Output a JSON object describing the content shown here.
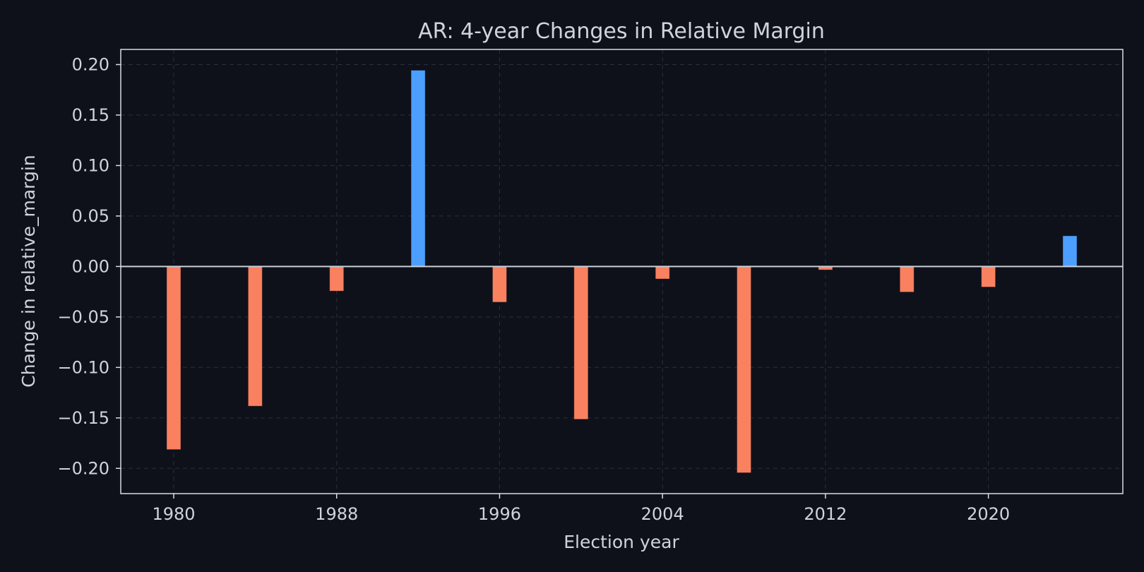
{
  "chart_data": {
    "type": "bar",
    "title": "AR: 4-year Changes in Relative Margin",
    "xlabel": "Election year",
    "ylabel": "Change in relative_margin",
    "x": [
      1980,
      1984,
      1988,
      1992,
      1996,
      2000,
      2004,
      2008,
      2012,
      2016,
      2020,
      2024
    ],
    "values": [
      -0.181,
      -0.138,
      -0.024,
      0.194,
      -0.035,
      -0.151,
      -0.012,
      -0.204,
      -0.003,
      -0.025,
      -0.02,
      0.03
    ],
    "xlim": [
      1977.4,
      2026.6
    ],
    "ylim": [
      -0.225,
      0.215
    ],
    "xticks": [
      1980,
      1988,
      1996,
      2004,
      2012,
      2020
    ],
    "xtick_labels": [
      "1980",
      "1988",
      "1996",
      "2004",
      "2012",
      "2020"
    ],
    "yticks": [
      0.2,
      0.15,
      0.1,
      0.05,
      0.0,
      -0.05,
      -0.1,
      -0.15,
      -0.2
    ],
    "ytick_labels": [
      "0.20",
      "0.15",
      "0.10",
      "0.05",
      "0.00",
      "−0.05",
      "−0.10",
      "−0.15",
      "−0.20"
    ],
    "colors": {
      "positive": "#4c9ffe",
      "negative": "#fa8160",
      "background": "#0e111a",
      "text": "#cfd4dc"
    },
    "grid": true
  }
}
